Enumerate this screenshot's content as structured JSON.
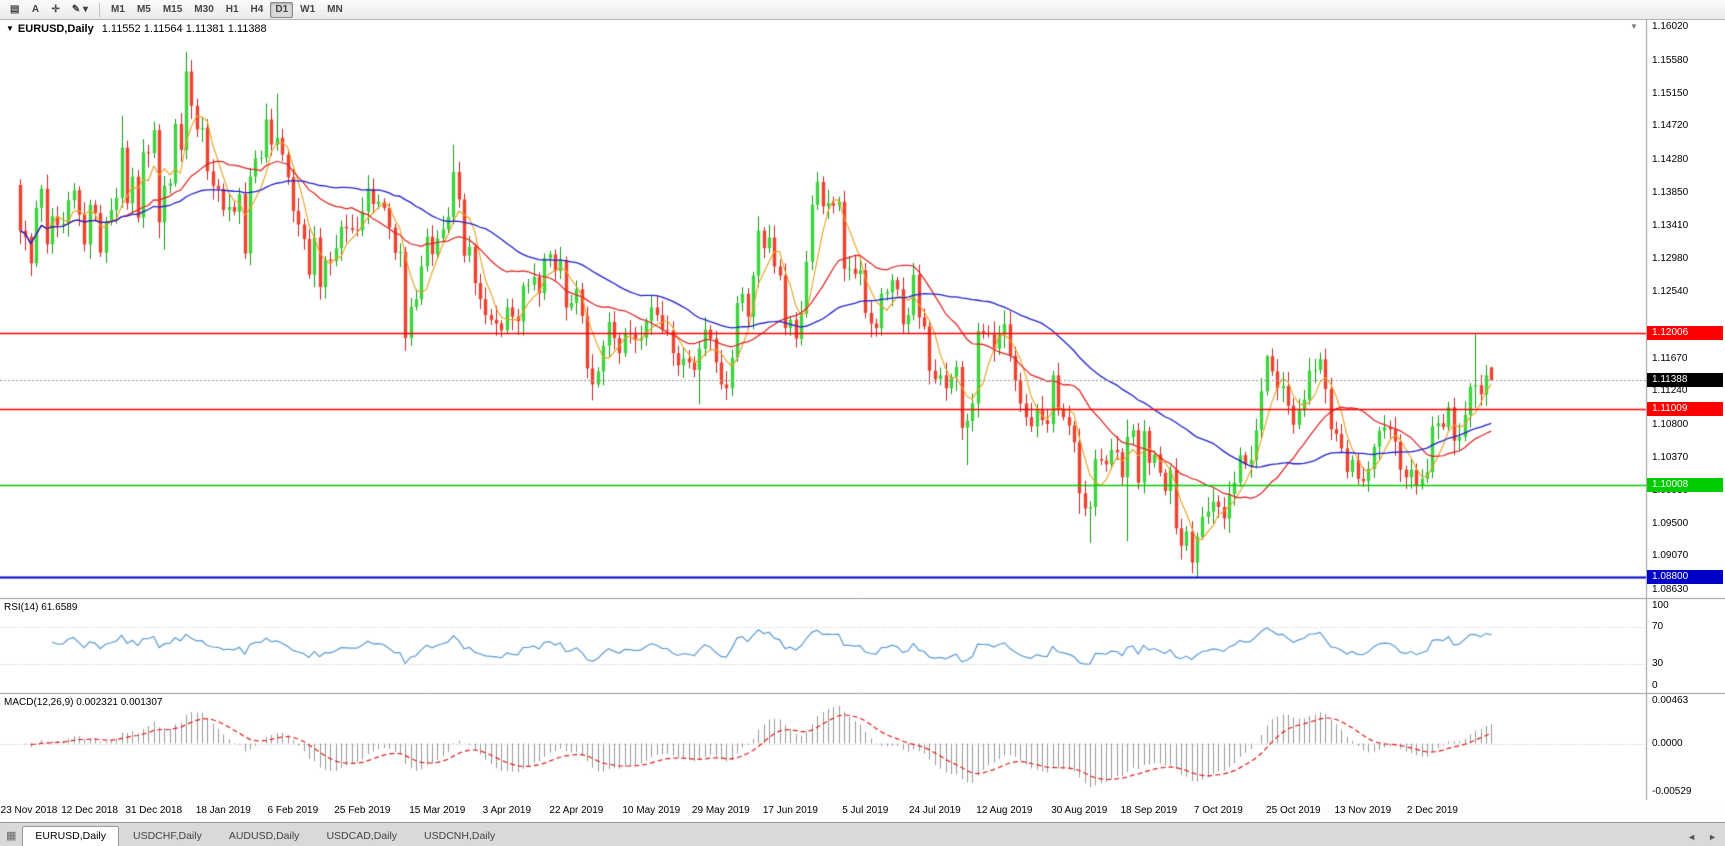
{
  "toolbar": {
    "icons": [
      {
        "name": "chart-window-icon",
        "glyph": "▤"
      },
      {
        "name": "cursor-a-tool",
        "glyph": "A"
      },
      {
        "name": "crosshair-icon",
        "glyph": "✛"
      },
      {
        "name": "draw-tool-icon",
        "glyph": "✎ ▾"
      }
    ],
    "timeframes": [
      "M1",
      "M5",
      "M15",
      "M30",
      "H1",
      "H4",
      "D1",
      "W1",
      "MN"
    ],
    "active_timeframe": "D1"
  },
  "chart": {
    "symbol_label": "EURUSD,Daily",
    "ohlc_text": "1.11552 1.11564 1.11381 1.11388",
    "current_price": "1.11388",
    "levels": [
      {
        "value": "1.12006",
        "price": 1.12006,
        "color": "#ff0000",
        "width": 1.6
      },
      {
        "value": "1.11009",
        "price": 1.11009,
        "color": "#ff0000",
        "width": 1.6
      },
      {
        "value": "1.10008",
        "price": 1.10008,
        "color": "#00cc00",
        "width": 1.6
      },
      {
        "value": "1.08800",
        "price": 1.088,
        "color": "#0000c8",
        "width": 2.2
      }
    ]
  },
  "rsi": {
    "label": "RSI(14)",
    "value": "61.6589",
    "axis": [
      100,
      70,
      30,
      0
    ]
  },
  "macd": {
    "label": "MACD(12,26,9)",
    "values": "0.002321 0.001307",
    "axis": [
      {
        "text": "0.00463",
        "v": 0.00463
      },
      {
        "text": "0.0000",
        "v": 0
      },
      {
        "text": "-0.00529",
        "v": -0.00529
      }
    ]
  },
  "date_axis": [
    {
      "label": "23 Nov 2018",
      "i": 0
    },
    {
      "label": "12 Dec 2018",
      "i": 13
    },
    {
      "label": "31 Dec 2018",
      "i": 25
    },
    {
      "label": "18 Jan 2019",
      "i": 38
    },
    {
      "label": "6 Feb 2019",
      "i": 51
    },
    {
      "label": "25 Feb 2019",
      "i": 64
    },
    {
      "label": "15 Mar 2019",
      "i": 78
    },
    {
      "label": "3 Apr 2019",
      "i": 91
    },
    {
      "label": "22 Apr 2019",
      "i": 104
    },
    {
      "label": "10 May 2019",
      "i": 118
    },
    {
      "label": "29 May 2019",
      "i": 131
    },
    {
      "label": "17 Jun 2019",
      "i": 144
    },
    {
      "label": "5 Jul 2019",
      "i": 158
    },
    {
      "label": "24 Jul 2019",
      "i": 171
    },
    {
      "label": "12 Aug 2019",
      "i": 184
    },
    {
      "label": "30 Aug 2019",
      "i": 198
    },
    {
      "label": "18 Sep 2019",
      "i": 211
    },
    {
      "label": "7 Oct 2019",
      "i": 224
    },
    {
      "label": "25 Oct 2019",
      "i": 238
    },
    {
      "label": "13 Nov 2019",
      "i": 251
    },
    {
      "label": "2 Dec 2019",
      "i": 264
    }
  ],
  "tabs": {
    "items": [
      "EURUSD,Daily",
      "USDCHF,Daily",
      "AUDUSD,Daily",
      "USDCAD,Daily",
      "USDCNH,Daily"
    ],
    "active": "EURUSD,Daily"
  },
  "chart_data": {
    "type": "candlestick",
    "symbol": "EURUSD",
    "timeframe": "Daily",
    "title": "EURUSD,Daily",
    "last": {
      "open": 1.11552,
      "high": 1.11564,
      "low": 1.11381,
      "close": 1.11388
    },
    "view": {
      "price_top": 1.16117,
      "price_bottom": 1.08538
    },
    "price_axis": {
      "ticks": [
        1.1602,
        1.1558,
        1.1515,
        1.1472,
        1.1428,
        1.1385,
        1.1341,
        1.1298,
        1.1254,
        1.1167,
        1.1124,
        1.108,
        1.1037,
        1.0993,
        1.095,
        1.0907,
        1.0863
      ]
    },
    "key_levels": {
      "resistance": 1.12006,
      "support": [
        1.11009,
        1.10008,
        1.088
      ]
    },
    "first_open": 1.1395,
    "closes": [
      1.1335,
      1.1327,
      1.1292,
      1.1365,
      1.139,
      1.1317,
      1.1354,
      1.1342,
      1.1344,
      1.1375,
      1.1388,
      1.1356,
      1.1317,
      1.1369,
      1.1358,
      1.1306,
      1.1347,
      1.1362,
      1.1378,
      1.1444,
      1.1371,
      1.1406,
      1.1352,
      1.1438,
      1.1437,
      1.1467,
      1.1346,
      1.1394,
      1.1397,
      1.1475,
      1.1441,
      1.1544,
      1.1499,
      1.1468,
      1.147,
      1.1413,
      1.1394,
      1.139,
      1.1362,
      1.1366,
      1.136,
      1.1383,
      1.1305,
      1.1406,
      1.143,
      1.1431,
      1.1481,
      1.1448,
      1.1457,
      1.1435,
      1.1405,
      1.1361,
      1.1343,
      1.1324,
      1.1277,
      1.1326,
      1.1261,
      1.1297,
      1.1295,
      1.1312,
      1.134,
      1.1338,
      1.1336,
      1.1335,
      1.136,
      1.139,
      1.137,
      1.1373,
      1.1365,
      1.1339,
      1.1306,
      1.1307,
      1.1194,
      1.1235,
      1.1245,
      1.1288,
      1.1327,
      1.1304,
      1.1325,
      1.1337,
      1.1353,
      1.1412,
      1.1376,
      1.1302,
      1.1314,
      1.1266,
      1.1245,
      1.1224,
      1.1218,
      1.1213,
      1.1204,
      1.1234,
      1.1222,
      1.1216,
      1.1263,
      1.1264,
      1.1274,
      1.1253,
      1.1299,
      1.1304,
      1.1282,
      1.1296,
      1.1234,
      1.124,
      1.1258,
      1.1223,
      1.1154,
      1.1133,
      1.115,
      1.1184,
      1.1215,
      1.1194,
      1.1174,
      1.12,
      1.1199,
      1.1191,
      1.1194,
      1.1216,
      1.1234,
      1.1224,
      1.1205,
      1.1204,
      1.1174,
      1.1158,
      1.1167,
      1.1162,
      1.1152,
      1.118,
      1.1205,
      1.1193,
      1.1162,
      1.1133,
      1.1128,
      1.1168,
      1.124,
      1.1252,
      1.1222,
      1.1276,
      1.1335,
      1.1312,
      1.1326,
      1.1288,
      1.1276,
      1.1207,
      1.1218,
      1.1193,
      1.1226,
      1.1294,
      1.1369,
      1.1399,
      1.1367,
      1.1371,
      1.1368,
      1.1373,
      1.1285,
      1.1285,
      1.1278,
      1.1283,
      1.1227,
      1.1213,
      1.1207,
      1.1252,
      1.1254,
      1.127,
      1.1258,
      1.1212,
      1.1224,
      1.1277,
      1.1221,
      1.1209,
      1.1151,
      1.114,
      1.1145,
      1.1128,
      1.1143,
      1.1156,
      1.1076,
      1.1085,
      1.1108,
      1.1203,
      1.12,
      1.1199,
      1.118,
      1.1199,
      1.1212,
      1.1171,
      1.1139,
      1.1108,
      1.109,
      1.1078,
      1.11,
      1.1086,
      1.1081,
      1.1145,
      1.1101,
      1.109,
      1.1079,
      1.1057,
      1.099,
      1.097,
      1.0972,
      1.1035,
      1.1033,
      1.1028,
      1.1047,
      1.1044,
      1.1011,
      1.1064,
      1.1073,
      1.1004,
      1.1072,
      1.103,
      1.1041,
      1.1017,
      1.0993,
      1.1021,
      1.0944,
      1.0921,
      1.094,
      1.0899,
      1.0933,
      1.0959,
      1.0966,
      1.0979,
      1.0972,
      1.0957,
      1.0989,
      1.1004,
      1.104,
      1.1028,
      1.1034,
      1.1073,
      1.1124,
      1.117,
      1.115,
      1.1128,
      1.1131,
      1.1105,
      1.108,
      1.1099,
      1.1113,
      1.1151,
      1.1152,
      1.1166,
      1.1127,
      1.1074,
      1.1068,
      1.1049,
      1.1018,
      1.1034,
      1.1009,
      1.1006,
      1.1022,
      1.1051,
      1.1072,
      1.1077,
      1.1074,
      1.1058,
      1.1021,
      1.1011,
      1.1021,
      1.1,
      1.1009,
      1.1018,
      1.1078,
      1.1082,
      1.1077,
      1.1103,
      1.1059,
      1.1064,
      1.1093,
      1.113,
      1.1132,
      1.112,
      1.1145,
      1.1139
    ],
    "wick_overrides": [
      {
        "i": 19,
        "h": 1.1486
      },
      {
        "i": 26,
        "l": 1.1325
      },
      {
        "i": 27,
        "l": 1.131
      },
      {
        "i": 31,
        "h": 1.157
      },
      {
        "i": 46,
        "h": 1.1502
      },
      {
        "i": 48,
        "h": 1.1515
      },
      {
        "i": 72,
        "l": 1.1177
      },
      {
        "i": 81,
        "h": 1.1448
      },
      {
        "i": 106,
        "l": 1.1141
      },
      {
        "i": 107,
        "l": 1.1112
      },
      {
        "i": 127,
        "l": 1.1107
      },
      {
        "i": 149,
        "h": 1.1412
      },
      {
        "i": 176,
        "l": 1.106
      },
      {
        "i": 177,
        "l": 1.1027
      },
      {
        "i": 184,
        "h": 1.123
      },
      {
        "i": 198,
        "l": 1.0963
      },
      {
        "i": 200,
        "l": 1.0925
      },
      {
        "i": 207,
        "h": 1.1087,
        "l": 1.0927
      },
      {
        "i": 219,
        "l": 1.0885
      },
      {
        "i": 220,
        "l": 1.0879
      },
      {
        "i": 233,
        "h": 1.1172
      },
      {
        "i": 272,
        "h": 1.1199,
        "l": 1.1102
      },
      {
        "i": 275,
        "o": 1.11552,
        "h": 1.11564,
        "l": 1.11381,
        "c": 1.11388
      }
    ],
    "moving_averages": [
      {
        "period": 5,
        "color": "#e8a020"
      },
      {
        "period": 20,
        "color": "#e02020"
      },
      {
        "period": 45,
        "color": "#2222cc"
      }
    ],
    "indicators": {
      "rsi": {
        "period": 14,
        "current": 61.6589,
        "levels": [
          70,
          30
        ]
      },
      "macd": {
        "fast": 12,
        "slow": 26,
        "signal_period": 9,
        "main": 0.002321,
        "signal": 0.001307
      }
    }
  }
}
